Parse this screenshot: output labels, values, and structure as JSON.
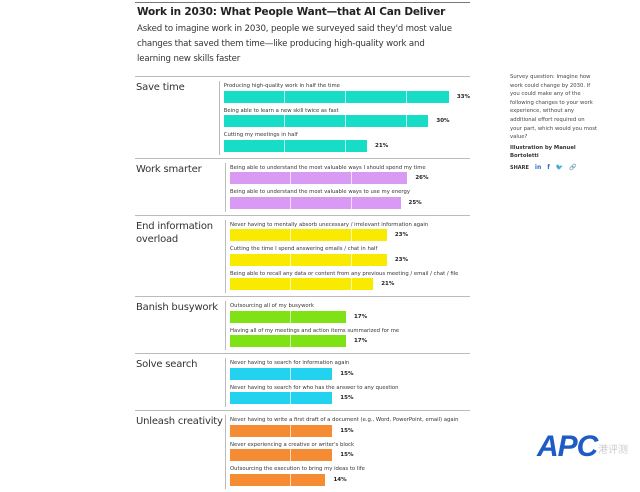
{
  "header": {
    "title": "Work in 2030: What People Want—that AI Can Deliver",
    "subtitle": "Asked to imagine work in 2030, people we surveyed said they'd most value changes that saved them time—like producing high-quality work and learning new skills faster"
  },
  "sidebar": {
    "note": "Survey question: Imagine how work could change by 2030. If you could make any of the following changes to your work experience, without any additional effort required on your part, which would you most value?",
    "credit": "Illustration by Manuel Bortoletti",
    "share_label": "SHARE",
    "share_icons": [
      "linkedin-icon",
      "facebook-icon",
      "twitter-icon",
      "link-icon"
    ],
    "share_glyphs": [
      "in",
      "f",
      "🐦",
      "🔗"
    ]
  },
  "watermark": {
    "text": "APC",
    "sub": "港评测"
  },
  "chart_data": {
    "type": "bar",
    "orientation": "horizontal",
    "unit": "%",
    "groups": [
      {
        "name": "Save time",
        "color": "#17dcc6",
        "items": [
          {
            "label": "Producing high-quality work in half the time",
            "value": 33
          },
          {
            "label": "Being able to learn a new skill twice as fast",
            "value": 30
          },
          {
            "label": "Cutting my meetings in half",
            "value": 21
          }
        ]
      },
      {
        "name": "Work smarter",
        "color": "#d89af2",
        "items": [
          {
            "label": "Being able to understand the most valuable ways I should spend my time",
            "value": 26
          },
          {
            "label": "Being able to understand the most valuable ways to use my energy",
            "value": 25
          }
        ]
      },
      {
        "name": "End information overload",
        "color": "#f8ea00",
        "items": [
          {
            "label": "Never having to mentally absorb unecessary / irrelevant information again",
            "value": 23
          },
          {
            "label": "Cutting the time I spend answering emails / chat in half",
            "value": 23
          },
          {
            "label": "Being able to recall any data or content from any previous meeting / email / chat / file",
            "value": 21
          }
        ]
      },
      {
        "name": "Banish busywork",
        "color": "#7ee214",
        "items": [
          {
            "label": "Outsourcing all of my busywork",
            "value": 17
          },
          {
            "label": "Having all of my meetings and action items summarized for me",
            "value": 17
          }
        ]
      },
      {
        "name": "Solve search",
        "color": "#22d2ee",
        "items": [
          {
            "label": "Never having to search for information again",
            "value": 15
          },
          {
            "label": "Never having to search for who has the answer to any question",
            "value": 15
          }
        ]
      },
      {
        "name": "Unleash creativity",
        "color": "#f58b33",
        "items": [
          {
            "label": "Never having to write a first draft of a document (e.g., Word, PowerPoint, email) again",
            "value": 15
          },
          {
            "label": "Never experiencing a creative or writer's block",
            "value": 15
          },
          {
            "label": "Outsourcing the execution to bring my ideas to life",
            "value": 14
          }
        ]
      }
    ]
  }
}
